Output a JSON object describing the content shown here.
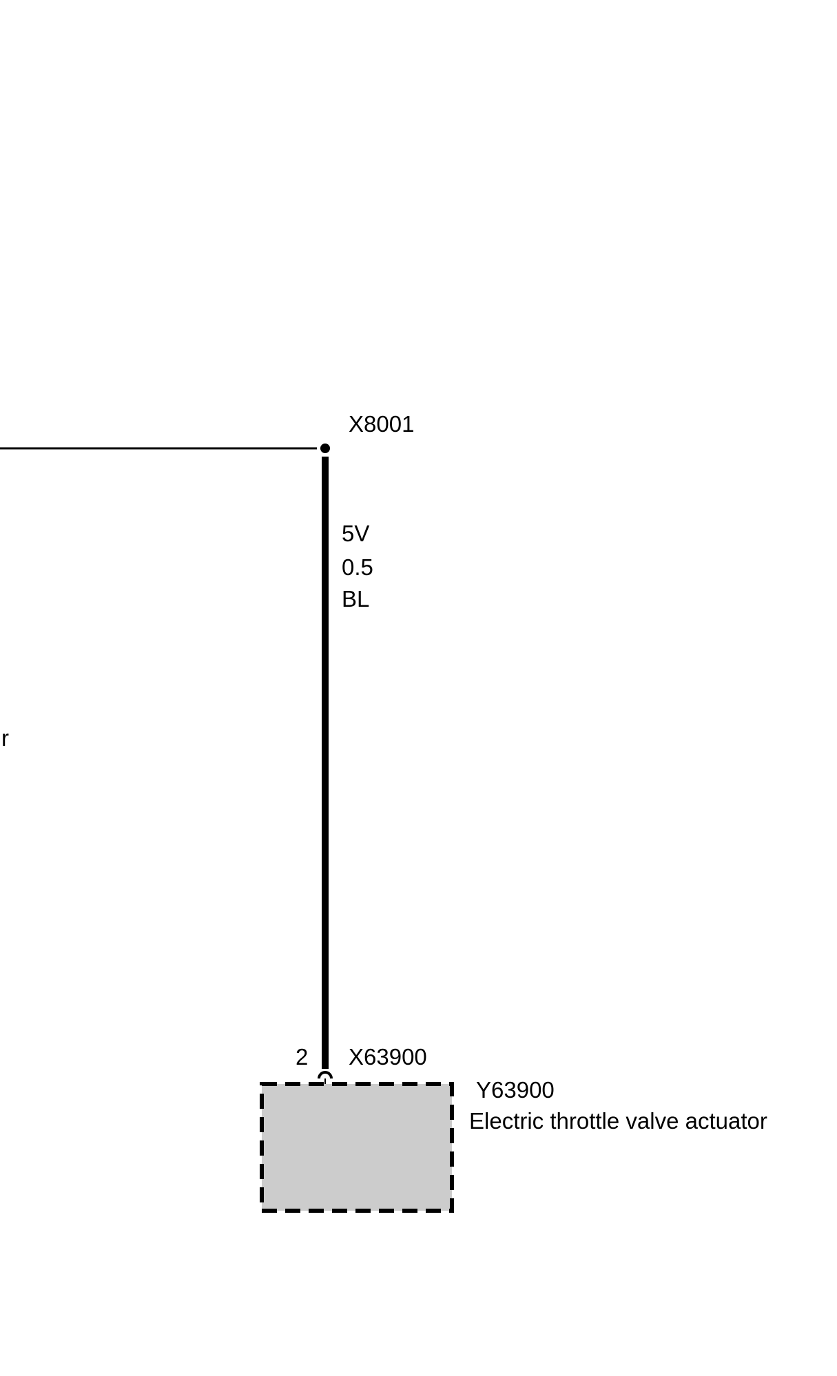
{
  "diagram": {
    "partial_label_left": "r",
    "splice": {
      "id": "X8001"
    },
    "wire": {
      "voltage": "5V",
      "gauge": "0.5",
      "color_code": "BL"
    },
    "connector": {
      "id": "X63900",
      "pin": "2"
    },
    "component": {
      "id": "Y63900",
      "name": "Electric throttle valve actuator",
      "fill_color": "#cccccc",
      "border_style": "dashed"
    },
    "line_color": "#000000"
  }
}
